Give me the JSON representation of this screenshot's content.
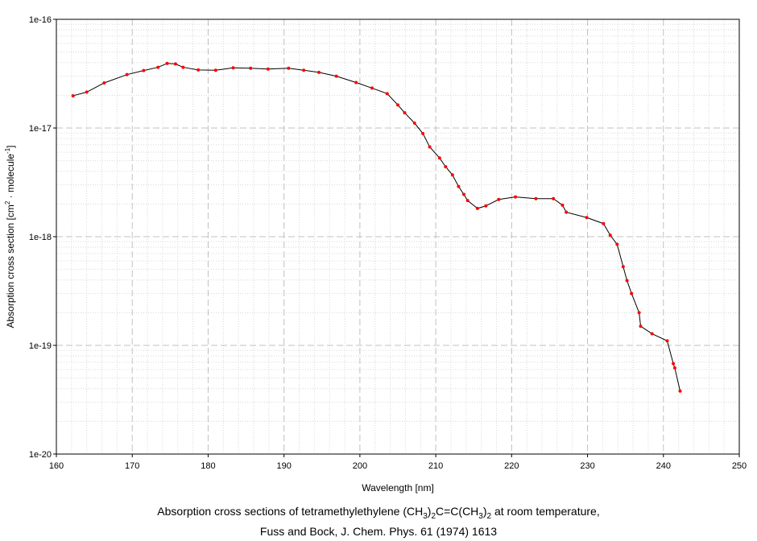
{
  "chart_data": {
    "type": "line",
    "xlabel": "Wavelength [nm]",
    "ylabel_main": "Absorption cross section [cm",
    "ylabel_sup1": "2",
    "ylabel_mid": " · molecule",
    "ylabel_sup2": "-1",
    "ylabel_end": "]",
    "xlim": [
      160,
      250
    ],
    "ylim": [
      1e-20,
      1e-16
    ],
    "yscale": "log",
    "grid": true,
    "x_ticks": [
      "160",
      "170",
      "180",
      "190",
      "200",
      "210",
      "220",
      "230",
      "240",
      "250"
    ],
    "y_ticks": [
      "1e-20",
      "1e-19",
      "1e-18",
      "1e-17",
      "1e-16"
    ],
    "line_color": "#000000",
    "marker_color": "#ff0000",
    "series": [
      {
        "x": [
          162.2,
          164.0,
          166.3,
          169.3,
          171.5,
          173.4,
          174.6,
          175.7,
          176.7,
          178.7,
          181.0,
          183.3,
          185.6,
          187.9,
          190.6,
          192.6,
          194.6,
          196.9,
          199.5,
          201.6,
          203.6,
          205.0,
          205.9,
          207.2,
          208.3,
          209.2,
          210.5,
          211.3,
          212.2,
          213.0,
          213.7,
          214.2,
          215.5,
          216.6,
          218.3,
          220.5,
          223.2,
          225.5,
          226.7,
          227.2,
          229.9,
          232.1,
          233.0,
          233.9,
          234.7,
          235.2,
          235.8,
          236.8,
          237.0,
          238.5,
          240.5,
          241.3,
          241.5,
          242.2
        ],
        "y": [
          1.98e-17,
          2.14e-17,
          2.6e-17,
          3.1e-17,
          3.38e-17,
          3.62e-17,
          3.93e-17,
          3.89e-17,
          3.62e-17,
          3.42e-17,
          3.4e-17,
          3.58e-17,
          3.55e-17,
          3.49e-17,
          3.55e-17,
          3.4e-17,
          3.25e-17,
          3e-17,
          2.62e-17,
          2.33e-17,
          2.07e-17,
          1.63e-17,
          1.38e-17,
          1.11e-17,
          8.9e-18,
          6.7e-18,
          5.3e-18,
          4.4e-18,
          3.7e-18,
          2.9e-18,
          2.45e-18,
          2.15e-18,
          1.82e-18,
          1.92e-18,
          2.2e-18,
          2.32e-18,
          2.24e-18,
          2.24e-18,
          1.95e-18,
          1.68e-18,
          1.5e-18,
          1.32e-18,
          1.03e-18,
          8.5e-19,
          5.3e-19,
          3.95e-19,
          3e-19,
          2e-19,
          1.5e-19,
          1.28e-19,
          1.1e-19,
          6.8e-20,
          6.2e-20,
          3.8e-20
        ]
      }
    ]
  },
  "caption": {
    "line1_a": "Absorption cross sections of tetramethylethylene (CH",
    "line1_sub1": "3",
    "line1_b": ")",
    "line1_sub2": "2",
    "line1_c": "C=C(CH",
    "line1_sub3": "3",
    "line1_d": ")",
    "line1_sub4": "2",
    "line1_e": " at room temperature,",
    "line2": "Fuss and Bock, J. Chem. Phys. 61 (1974) 1613"
  }
}
